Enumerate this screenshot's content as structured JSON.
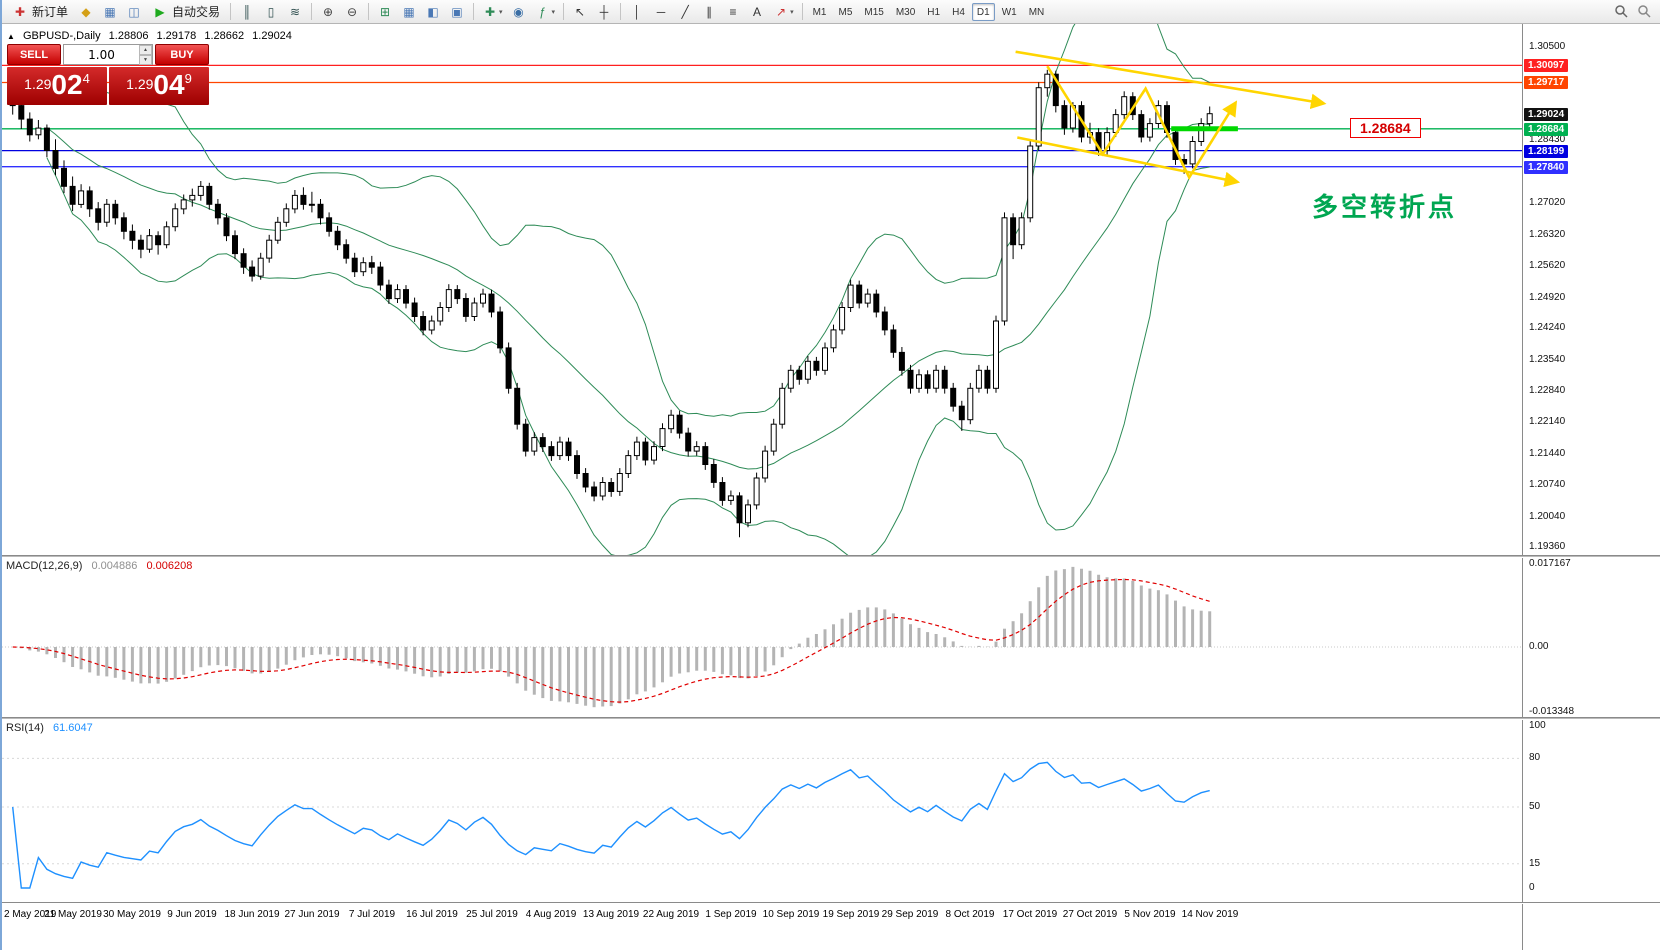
{
  "colors": {
    "accent_red": "#cc0000",
    "band_green": "#2e8b57",
    "rsi_blue": "#1e90ff",
    "macd_hist": "#b4b4b4",
    "macd_signal": "#e00000"
  },
  "toolbar": {
    "new_order_label": "新订单",
    "auto_trading_label": "自动交易",
    "group_pre": [
      {
        "name": "profiles-icon",
        "glyph": "◆",
        "color": "#d4a017"
      },
      {
        "name": "market-watch-icon",
        "glyph": "▦",
        "color": "#4a78b5"
      },
      {
        "name": "data-window-icon",
        "glyph": "◫",
        "color": "#4a78b5"
      }
    ],
    "groups": [
      [
        {
          "name": "bar-chart-icon",
          "glyph": "║",
          "color": "#2f4f4f"
        },
        {
          "name": "candlestick-chart-icon",
          "glyph": "▯",
          "color": "#2f4f4f"
        },
        {
          "name": "line-chart-icon",
          "glyph": "≋",
          "color": "#2f4f4f"
        }
      ],
      [
        {
          "name": "zoom-in-icon",
          "glyph": "⊕",
          "color": "#444444"
        },
        {
          "name": "zoom-out-icon",
          "glyph": "⊖",
          "color": "#444444"
        }
      ],
      [
        {
          "name": "auto-scroll-icon",
          "glyph": "⊞",
          "color": "#2e8b57"
        },
        {
          "name": "tile-windows-icon",
          "glyph": "▦",
          "color": "#4a78b5"
        },
        {
          "name": "cascade-windows-icon",
          "glyph": "◧",
          "color": "#4a78b5"
        },
        {
          "name": "arrange-windows-icon",
          "glyph": "▣",
          "color": "#4a78b5"
        }
      ],
      [
        {
          "name": "new-chart-icon",
          "glyph": "✚",
          "color": "#2e8b57",
          "caret": true
        },
        {
          "name": "navigator-icon",
          "glyph": "◉",
          "color": "#3a6ea5"
        },
        {
          "name": "indicators-icon",
          "glyph": "ƒ",
          "color": "#2e8b57",
          "caret": true
        }
      ],
      [
        {
          "name": "cursor-icon",
          "glyph": "↖",
          "color": "#333333"
        },
        {
          "name": "crosshair-icon",
          "glyph": "┼",
          "color": "#333333"
        }
      ],
      [
        {
          "name": "vertical-line-icon",
          "glyph": "│",
          "color": "#333333"
        },
        {
          "name": "horizontal-line-icon",
          "glyph": "─",
          "color": "#333333"
        },
        {
          "name": "trendline-icon",
          "glyph": "╱",
          "color": "#333333"
        },
        {
          "name": "channel-icon",
          "glyph": "∥",
          "color": "#333333"
        },
        {
          "name": "fibonacci-icon",
          "glyph": "≡",
          "color": "#333333"
        },
        {
          "name": "text-label-icon",
          "glyph": "A",
          "color": "#333333"
        },
        {
          "name": "arrow-objects-icon",
          "glyph": "↗",
          "color": "#cc3333",
          "caret": true
        }
      ]
    ],
    "timeframes": [
      "M1",
      "M5",
      "M15",
      "M30",
      "H1",
      "H4",
      "D1",
      "W1",
      "MN"
    ],
    "active_timeframe": "D1"
  },
  "chart_header": {
    "symbol": "GBPUSD-,Daily",
    "open": "1.28806",
    "high": "1.29178",
    "low": "1.28662",
    "close": "1.29024"
  },
  "trade_panel": {
    "sell_label": "SELL",
    "buy_label": "BUY",
    "volume": "1.00",
    "sell_price": {
      "base": "1.29",
      "big": "02",
      "sup": "4"
    },
    "buy_price": {
      "base": "1.29",
      "big": "04",
      "sup": "9"
    }
  },
  "price_axis": {
    "plain": [
      "1.30500",
      "1.28430",
      "1.27720",
      "1.27020",
      "1.26320",
      "1.25620",
      "1.24920",
      "1.24240",
      "1.23540",
      "1.22840",
      "1.22140",
      "1.21440",
      "1.20740",
      "1.20040",
      "1.19360"
    ],
    "tags": [
      {
        "value": "1.30097",
        "color": "#ff2020",
        "text": "#ffffff"
      },
      {
        "value": "1.29717",
        "color": "#ff4500",
        "text": "#ffffff"
      },
      {
        "value": "1.29024",
        "color": "#111111",
        "text": "#ffffff"
      },
      {
        "value": "1.28684",
        "color": "#00b050",
        "text": "#ffffff"
      },
      {
        "value": "1.28199",
        "color": "#0000e0",
        "text": "#ffffff"
      },
      {
        "value": "1.27840",
        "color": "#3030ff",
        "text": "#ffffff"
      }
    ]
  },
  "hlines": [
    {
      "price": 1.30097,
      "color": "#ff2020"
    },
    {
      "price": 1.29717,
      "color": "#ff4500"
    },
    {
      "price": 1.28684,
      "color": "#00b050"
    },
    {
      "price": 1.28199,
      "color": "#0000e0"
    },
    {
      "price": 1.2784,
      "color": "#3030ff"
    }
  ],
  "annotations": {
    "price_tag": "1.28684",
    "cn_note": "多空转折点",
    "trend_color": "#ffd500",
    "trendlines": [
      {
        "name": "upper-channel-trendline",
        "arrow": true,
        "points": [
          [
            117.3,
            1.304
          ],
          [
            153.3,
            1.2925
          ]
        ]
      },
      {
        "name": "lower-channel-trendline",
        "arrow": true,
        "points": [
          [
            117.5,
            1.2849
          ],
          [
            143.2,
            1.275
          ]
        ]
      },
      {
        "name": "swing-zigzag-line",
        "arrow": true,
        "points": [
          [
            121,
            1.3008
          ],
          [
            127.5,
            1.2812
          ],
          [
            132.5,
            1.2958
          ],
          [
            137.6,
            1.276
          ],
          [
            143,
            1.2926
          ]
        ]
      }
    ],
    "green_segment": {
      "i1": 135.5,
      "i2": 143.3,
      "price": 1.28684,
      "color": "#00d800"
    }
  },
  "macd": {
    "label": "MACD(12,26,9)",
    "main_value": "0.004886",
    "signal_value": "0.006208",
    "axis": [
      "0.017167",
      "0.00",
      "-0.013348"
    ]
  },
  "rsi": {
    "label": "RSI(14)",
    "value": "61.6047",
    "axis": [
      {
        "v": 100,
        "t": "100"
      },
      {
        "v": 80,
        "t": "80"
      },
      {
        "v": 50,
        "t": "50"
      },
      {
        "v": 15,
        "t": "15"
      },
      {
        "v": 0,
        "t": "0"
      }
    ],
    "levels": [
      80,
      50,
      15
    ]
  },
  "chart_data": {
    "type": "candlestick",
    "symbol": "GBPUSD",
    "timeframe": "Daily",
    "title": "GBPUSD-,Daily",
    "current_ohlc": {
      "open": 1.28806,
      "high": 1.29178,
      "low": 1.28662,
      "close": 1.29024
    },
    "y_axis": {
      "min": 1.1916,
      "max": 1.3102,
      "visible_ticks": [
        1.305,
        1.2843,
        1.2772,
        1.2702,
        1.2632,
        1.2562,
        1.2492,
        1.2424,
        1.2354,
        1.2284,
        1.2214,
        1.2144,
        1.2074,
        1.2004,
        1.1936
      ]
    },
    "x_labels": [
      "2 May 2019",
      "21 May 2019",
      "30 May 2019",
      "9 Jun 2019",
      "18 Jun 2019",
      "27 Jun 2019",
      "7 Jul 2019",
      "16 Jul 2019",
      "25 Jul 2019",
      "4 Aug 2019",
      "13 Aug 2019",
      "22 Aug 2019",
      "1 Sep 2019",
      "10 Sep 2019",
      "19 Sep 2019",
      "29 Sep 2019",
      "8 Oct 2019",
      "17 Oct 2019",
      "27 Oct 2019",
      "5 Nov 2019",
      "14 Nov 2019"
    ],
    "label_every_n_candles": 7,
    "indicators": {
      "bollinger": {
        "period": 20,
        "deviation": 2,
        "color": "#2e8b57"
      },
      "macd": {
        "fast": 12,
        "slow": 26,
        "signal": 9,
        "current_main": 0.004886,
        "current_signal": 0.006208,
        "axis_max": 0.017167,
        "axis_min": -0.013348
      },
      "rsi": {
        "period": 14,
        "current": 61.6047,
        "levels": [
          80,
          50,
          15
        ]
      }
    },
    "ohlc": [
      [
        1.2935,
        1.2948,
        1.29,
        1.292
      ],
      [
        1.292,
        1.2932,
        1.2868,
        1.289
      ],
      [
        1.289,
        1.2905,
        1.284,
        1.2855
      ],
      [
        1.2855,
        1.2888,
        1.2845,
        1.287
      ],
      [
        1.287,
        1.2878,
        1.2805,
        1.282
      ],
      [
        1.282,
        1.2845,
        1.2765,
        1.278
      ],
      [
        1.278,
        1.2798,
        1.2725,
        1.274
      ],
      [
        1.274,
        1.2762,
        1.2685,
        1.27
      ],
      [
        1.27,
        1.2745,
        1.2692,
        1.273
      ],
      [
        1.273,
        1.274,
        1.2672,
        1.269
      ],
      [
        1.269,
        1.2705,
        1.2642,
        1.266
      ],
      [
        1.266,
        1.2712,
        1.265,
        1.27
      ],
      [
        1.27,
        1.271,
        1.2655,
        1.267
      ],
      [
        1.267,
        1.2682,
        1.2622,
        1.264
      ],
      [
        1.264,
        1.2655,
        1.26,
        1.262
      ],
      [
        1.262,
        1.2632,
        1.258,
        1.26
      ],
      [
        1.26,
        1.2645,
        1.2592,
        1.263
      ],
      [
        1.263,
        1.264,
        1.2588,
        1.261
      ],
      [
        1.261,
        1.2662,
        1.2602,
        1.265
      ],
      [
        1.265,
        1.2702,
        1.264,
        1.269
      ],
      [
        1.269,
        1.2722,
        1.2678,
        1.271
      ],
      [
        1.271,
        1.2735,
        1.2695,
        1.272
      ],
      [
        1.272,
        1.2752,
        1.2708,
        1.274
      ],
      [
        1.274,
        1.2748,
        1.2688,
        1.27
      ],
      [
        1.27,
        1.2712,
        1.2655,
        1.267
      ],
      [
        1.267,
        1.268,
        1.2618,
        1.263
      ],
      [
        1.263,
        1.2642,
        1.2578,
        1.259
      ],
      [
        1.259,
        1.2602,
        1.2545,
        1.256
      ],
      [
        1.256,
        1.2575,
        1.2528,
        1.254
      ],
      [
        1.254,
        1.2592,
        1.2532,
        1.258
      ],
      [
        1.258,
        1.2632,
        1.257,
        1.262
      ],
      [
        1.262,
        1.2672,
        1.2612,
        1.266
      ],
      [
        1.266,
        1.2702,
        1.265,
        1.269
      ],
      [
        1.269,
        1.2732,
        1.268,
        1.272
      ],
      [
        1.272,
        1.2738,
        1.2688,
        1.27
      ],
      [
        1.27,
        1.2728,
        1.2682,
        1.27
      ],
      [
        1.27,
        1.2712,
        1.2655,
        1.267
      ],
      [
        1.267,
        1.2682,
        1.2628,
        1.264
      ],
      [
        1.264,
        1.2652,
        1.2598,
        1.261
      ],
      [
        1.261,
        1.2622,
        1.2568,
        1.258
      ],
      [
        1.258,
        1.2592,
        1.2538,
        1.255
      ],
      [
        1.255,
        1.2582,
        1.254,
        1.257
      ],
      [
        1.257,
        1.2585,
        1.2545,
        1.256
      ],
      [
        1.256,
        1.2572,
        1.2508,
        1.252
      ],
      [
        1.252,
        1.2532,
        1.2478,
        1.249
      ],
      [
        1.249,
        1.2522,
        1.248,
        1.251
      ],
      [
        1.251,
        1.252,
        1.2468,
        1.248
      ],
      [
        1.248,
        1.2492,
        1.2438,
        1.245
      ],
      [
        1.245,
        1.2462,
        1.2408,
        1.242
      ],
      [
        1.242,
        1.2452,
        1.241,
        1.244
      ],
      [
        1.244,
        1.2482,
        1.243,
        1.247
      ],
      [
        1.247,
        1.2522,
        1.246,
        1.251
      ],
      [
        1.251,
        1.252,
        1.2478,
        1.249
      ],
      [
        1.249,
        1.2502,
        1.2438,
        1.245
      ],
      [
        1.245,
        1.2492,
        1.244,
        1.248
      ],
      [
        1.248,
        1.2512,
        1.247,
        1.25
      ],
      [
        1.25,
        1.251,
        1.2448,
        1.246
      ],
      [
        1.246,
        1.2472,
        1.2368,
        1.238
      ],
      [
        1.238,
        1.2392,
        1.2278,
        1.229
      ],
      [
        1.229,
        1.2302,
        1.2198,
        1.221
      ],
      [
        1.221,
        1.2222,
        1.2138,
        1.215
      ],
      [
        1.215,
        1.2192,
        1.214,
        1.218
      ],
      [
        1.218,
        1.219,
        1.2148,
        1.216
      ],
      [
        1.216,
        1.2172,
        1.2128,
        1.214
      ],
      [
        1.214,
        1.2182,
        1.213,
        1.217
      ],
      [
        1.217,
        1.218,
        1.2128,
        1.214
      ],
      [
        1.214,
        1.2152,
        1.2088,
        1.21
      ],
      [
        1.21,
        1.2112,
        1.2058,
        1.207
      ],
      [
        1.207,
        1.2082,
        1.2038,
        1.205
      ],
      [
        1.205,
        1.2092,
        1.204,
        1.208
      ],
      [
        1.208,
        1.209,
        1.2048,
        1.206
      ],
      [
        1.206,
        1.2112,
        1.205,
        1.21
      ],
      [
        1.21,
        1.2152,
        1.209,
        1.214
      ],
      [
        1.214,
        1.2182,
        1.213,
        1.217
      ],
      [
        1.217,
        1.218,
        1.2118,
        1.213
      ],
      [
        1.213,
        1.2172,
        1.212,
        1.216
      ],
      [
        1.216,
        1.2212,
        1.215,
        1.22
      ],
      [
        1.22,
        1.2242,
        1.219,
        1.223
      ],
      [
        1.223,
        1.224,
        1.2178,
        1.219
      ],
      [
        1.219,
        1.2202,
        1.2138,
        1.215
      ],
      [
        1.215,
        1.2172,
        1.214,
        1.216
      ],
      [
        1.216,
        1.217,
        1.2108,
        1.212
      ],
      [
        1.212,
        1.2132,
        1.2068,
        1.208
      ],
      [
        1.208,
        1.2092,
        1.2028,
        1.204
      ],
      [
        1.204,
        1.2062,
        1.203,
        1.205
      ],
      [
        1.205,
        1.2058,
        1.1958,
        1.199
      ],
      [
        1.199,
        1.2042,
        1.198,
        1.203
      ],
      [
        1.203,
        1.2102,
        1.202,
        1.209
      ],
      [
        1.209,
        1.2162,
        1.208,
        1.215
      ],
      [
        1.215,
        1.2222,
        1.214,
        1.221
      ],
      [
        1.221,
        1.2302,
        1.22,
        1.229
      ],
      [
        1.229,
        1.2342,
        1.228,
        1.233
      ],
      [
        1.233,
        1.234,
        1.2298,
        1.231
      ],
      [
        1.231,
        1.2362,
        1.23,
        1.235
      ],
      [
        1.235,
        1.236,
        1.2318,
        1.233
      ],
      [
        1.233,
        1.2392,
        1.232,
        1.238
      ],
      [
        1.238,
        1.2432,
        1.237,
        1.242
      ],
      [
        1.242,
        1.2482,
        1.241,
        1.247
      ],
      [
        1.247,
        1.2532,
        1.246,
        1.252
      ],
      [
        1.252,
        1.253,
        1.2468,
        1.248
      ],
      [
        1.248,
        1.2512,
        1.247,
        1.25
      ],
      [
        1.25,
        1.251,
        1.2448,
        1.246
      ],
      [
        1.246,
        1.2472,
        1.2408,
        1.242
      ],
      [
        1.242,
        1.2432,
        1.2358,
        1.237
      ],
      [
        1.237,
        1.2382,
        1.2318,
        1.233
      ],
      [
        1.233,
        1.2342,
        1.2278,
        1.229
      ],
      [
        1.229,
        1.2332,
        1.228,
        1.232
      ],
      [
        1.232,
        1.233,
        1.2278,
        1.229
      ],
      [
        1.229,
        1.2342,
        1.228,
        1.233
      ],
      [
        1.233,
        1.234,
        1.2278,
        1.229
      ],
      [
        1.229,
        1.2302,
        1.2238,
        1.225
      ],
      [
        1.225,
        1.2262,
        1.2195,
        1.222
      ],
      [
        1.222,
        1.2302,
        1.221,
        1.229
      ],
      [
        1.229,
        1.2342,
        1.228,
        1.233
      ],
      [
        1.233,
        1.234,
        1.2278,
        1.229
      ],
      [
        1.229,
        1.2452,
        1.228,
        1.244
      ],
      [
        1.244,
        1.2682,
        1.243,
        1.267
      ],
      [
        1.267,
        1.268,
        1.2578,
        1.261
      ],
      [
        1.261,
        1.2682,
        1.26,
        1.267
      ],
      [
        1.267,
        1.2842,
        1.266,
        1.283
      ],
      [
        1.283,
        1.2972,
        1.282,
        1.296
      ],
      [
        1.296,
        1.3,
        1.294,
        1.299
      ],
      [
        1.299,
        1.2998,
        1.2905,
        1.292
      ],
      [
        1.292,
        1.2932,
        1.2855,
        1.287
      ],
      [
        1.287,
        1.2928,
        1.286,
        1.292
      ],
      [
        1.292,
        1.293,
        1.2838,
        1.285
      ],
      [
        1.285,
        1.2882,
        1.2835,
        1.286
      ],
      [
        1.286,
        1.287,
        1.2808,
        1.282
      ],
      [
        1.282,
        1.2872,
        1.281,
        1.286
      ],
      [
        1.286,
        1.2912,
        1.285,
        1.29
      ],
      [
        1.29,
        1.2952,
        1.289,
        1.294
      ],
      [
        1.294,
        1.295,
        1.2888,
        1.29
      ],
      [
        1.29,
        1.291,
        1.2838,
        1.285
      ],
      [
        1.285,
        1.2892,
        1.284,
        1.288
      ],
      [
        1.288,
        1.2932,
        1.287,
        1.292
      ],
      [
        1.292,
        1.293,
        1.2848,
        1.286
      ],
      [
        1.286,
        1.287,
        1.2788,
        1.28
      ],
      [
        1.28,
        1.2812,
        1.2768,
        1.279
      ],
      [
        1.279,
        1.2852,
        1.278,
        1.284
      ],
      [
        1.284,
        1.2892,
        1.283,
        1.288
      ],
      [
        1.288,
        1.2918,
        1.2866,
        1.2902
      ]
    ]
  }
}
